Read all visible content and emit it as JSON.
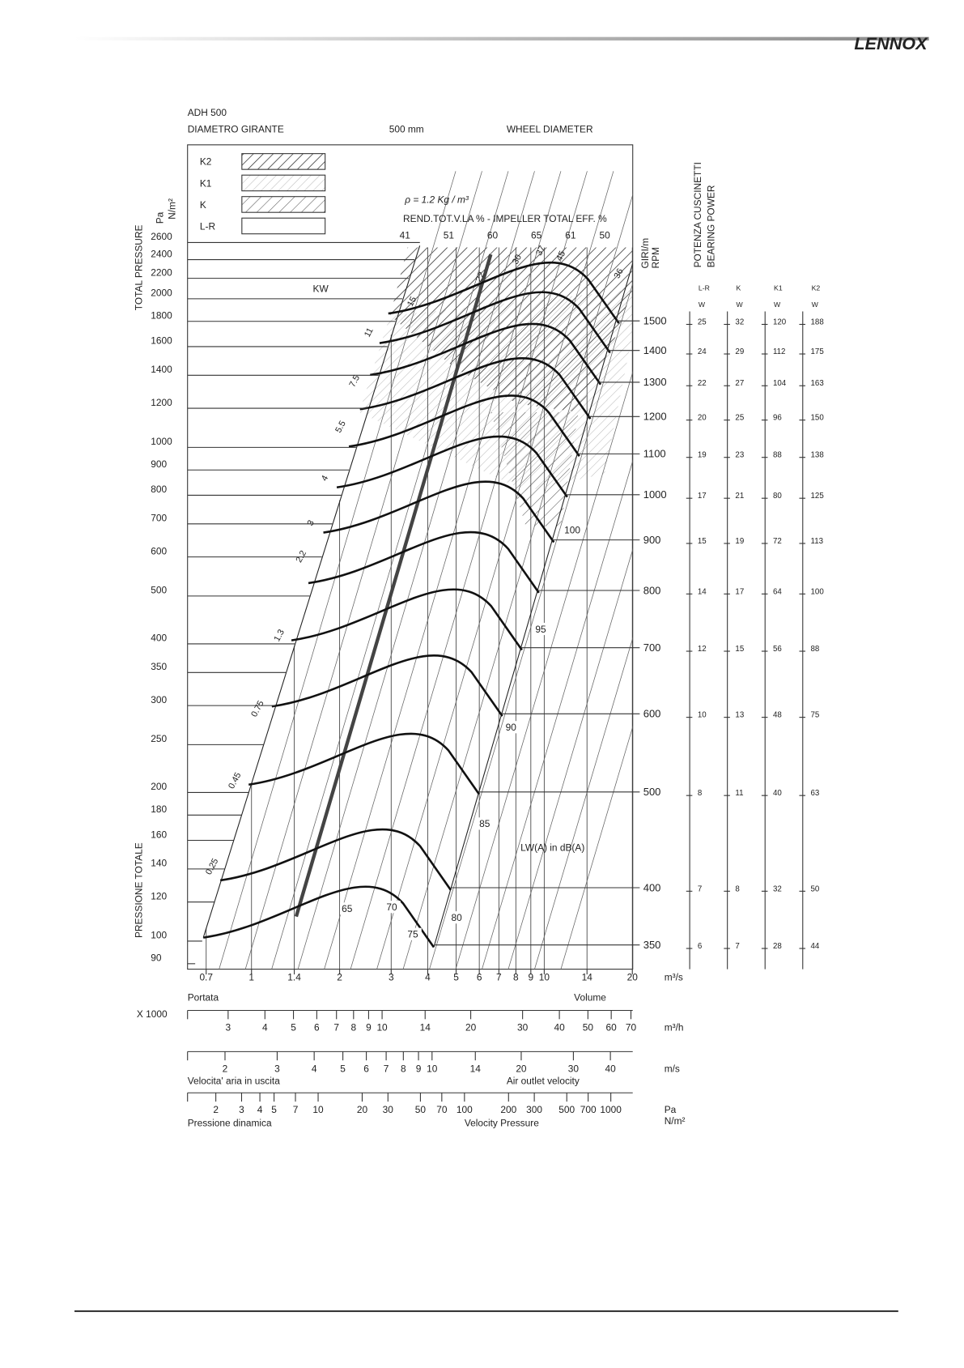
{
  "header": {
    "logo": "LENNOX"
  },
  "title": {
    "model": "ADH 500",
    "diameter_it": "DIAMETRO GIRANTE",
    "diameter": "500 mm",
    "diameter_en": "WHEEL DIAMETER"
  },
  "legend": [
    "K2",
    "K1",
    "K",
    "L-R"
  ],
  "density": "ρ = 1.2 Kg / m³",
  "efficiency": {
    "label": "REND.TOT.V.LA % - IMPELLER TOTAL EFF. %",
    "values": [
      41,
      51,
      60,
      65,
      61,
      50
    ]
  },
  "pressure_axis": {
    "label_en": "TOTAL PRESSURE",
    "label_it": "PRESSIONE TOTALE",
    "unit_top": "Pa",
    "unit_bottom": "N/m²",
    "ticks": [
      2600,
      2400,
      2200,
      2000,
      1800,
      1600,
      1400,
      1200,
      1000,
      900,
      800,
      700,
      600,
      500,
      400,
      350,
      300,
      250,
      200,
      180,
      160,
      140,
      120,
      100,
      90
    ]
  },
  "power": {
    "label": "KW",
    "values": [
      0.25,
      0.45,
      0.75,
      1.3,
      2.2,
      3,
      4,
      5.5,
      7.5,
      11,
      15,
      22,
      30,
      37,
      45,
      36
    ]
  },
  "rpm": {
    "label_top": "GIRI/m",
    "label_bottom": "RPM",
    "values": [
      1500,
      1400,
      1300,
      1200,
      1100,
      1000,
      900,
      800,
      700,
      600,
      500,
      400,
      350
    ]
  },
  "bearing": {
    "title_it": "POTENZA CUSCINETTI",
    "title_en": "BEARING POWER",
    "columns": [
      "L-R",
      "K",
      "K1",
      "K2"
    ],
    "unit": "W",
    "rows": [
      [
        25,
        32,
        120,
        188
      ],
      [
        24,
        29,
        112,
        175
      ],
      [
        22,
        27,
        104,
        163
      ],
      [
        20,
        25,
        96,
        150
      ],
      [
        19,
        23,
        88,
        138
      ],
      [
        17,
        21,
        80,
        125
      ],
      [
        15,
        19,
        72,
        113
      ],
      [
        14,
        17,
        64,
        100
      ],
      [
        12,
        15,
        56,
        88
      ],
      [
        10,
        13,
        48,
        75
      ],
      [
        8,
        11,
        40,
        63
      ],
      [
        7,
        8,
        32,
        50
      ],
      [
        6,
        7,
        28,
        44
      ]
    ]
  },
  "noise": {
    "label": "LW(A) in dB(A)",
    "values": [
      65,
      70,
      75,
      80,
      85,
      90,
      95,
      100
    ]
  },
  "flow_axis": {
    "ticks": [
      0.7,
      1,
      1.4,
      2,
      3,
      4,
      5,
      6,
      7,
      8,
      9,
      10,
      14,
      20
    ],
    "unit": "m³/s",
    "label_it": "Portata",
    "label_en": "Volume"
  },
  "flow_h_scale": {
    "multiplier": "X 1000",
    "ticks": [
      3,
      4,
      5,
      6,
      7,
      8,
      9,
      10,
      14,
      20,
      30,
      40,
      50,
      60,
      70
    ],
    "unit": "m³/h"
  },
  "velocity_scale": {
    "ticks": [
      2,
      3,
      4,
      5,
      6,
      7,
      8,
      9,
      10,
      14,
      20,
      30,
      40
    ],
    "unit": "m/s",
    "label_it": "Velocita' aria in uscita",
    "label_en": "Air outlet velocity"
  },
  "dynamic_scale": {
    "ticks": [
      2,
      3,
      4,
      5,
      7,
      10,
      20,
      30,
      50,
      70,
      100,
      200,
      300,
      500,
      700,
      1000
    ],
    "unit_top": "Pa",
    "unit_bottom": "N/m²",
    "label_it": "Pressione dinamica",
    "label_en": "Velocity Pressure"
  }
}
